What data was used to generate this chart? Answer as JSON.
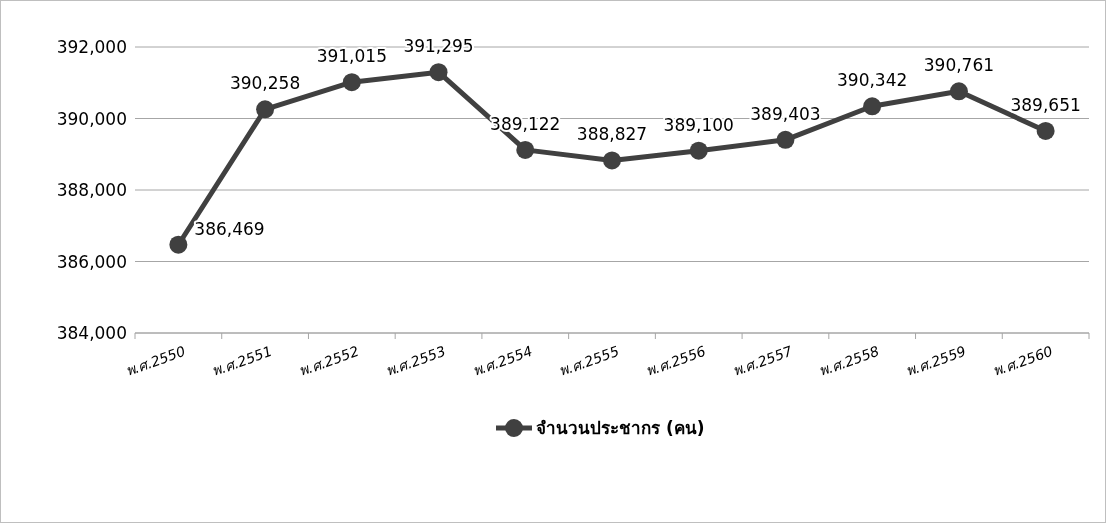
{
  "chart_data": {
    "type": "line",
    "categories": [
      "พ.ศ.2550",
      "พ.ศ.2551",
      "พ.ศ.2552",
      "พ.ศ.2553",
      "พ.ศ.2554",
      "พ.ศ.2555",
      "พ.ศ.2556",
      "พ.ศ.2557",
      "พ.ศ.2558",
      "พ.ศ.2559",
      "พ.ศ.2560"
    ],
    "series": [
      {
        "name": "จำนวนประชากร (คน)",
        "color": "#404040",
        "values": [
          386469,
          390258,
          391015,
          391295,
          389122,
          388827,
          389100,
          389403,
          390342,
          390761,
          389651
        ],
        "value_labels": [
          "386,469",
          "390,258",
          "391,015",
          "391,295",
          "389,122",
          "388,827",
          "389,100",
          "389,403",
          "390,342",
          "390,761",
          "389,651"
        ]
      }
    ],
    "ylim": [
      384000,
      392000
    ],
    "yticks": [
      {
        "value": 384000,
        "label": "384,000"
      },
      {
        "value": 386000,
        "label": "386,000"
      },
      {
        "value": 388000,
        "label": "388,000"
      },
      {
        "value": 390000,
        "label": "390,000"
      },
      {
        "value": 392000,
        "label": "392,000"
      }
    ],
    "grid": "y",
    "legend": "bottom",
    "marker": "circle",
    "line_style": "solid"
  }
}
